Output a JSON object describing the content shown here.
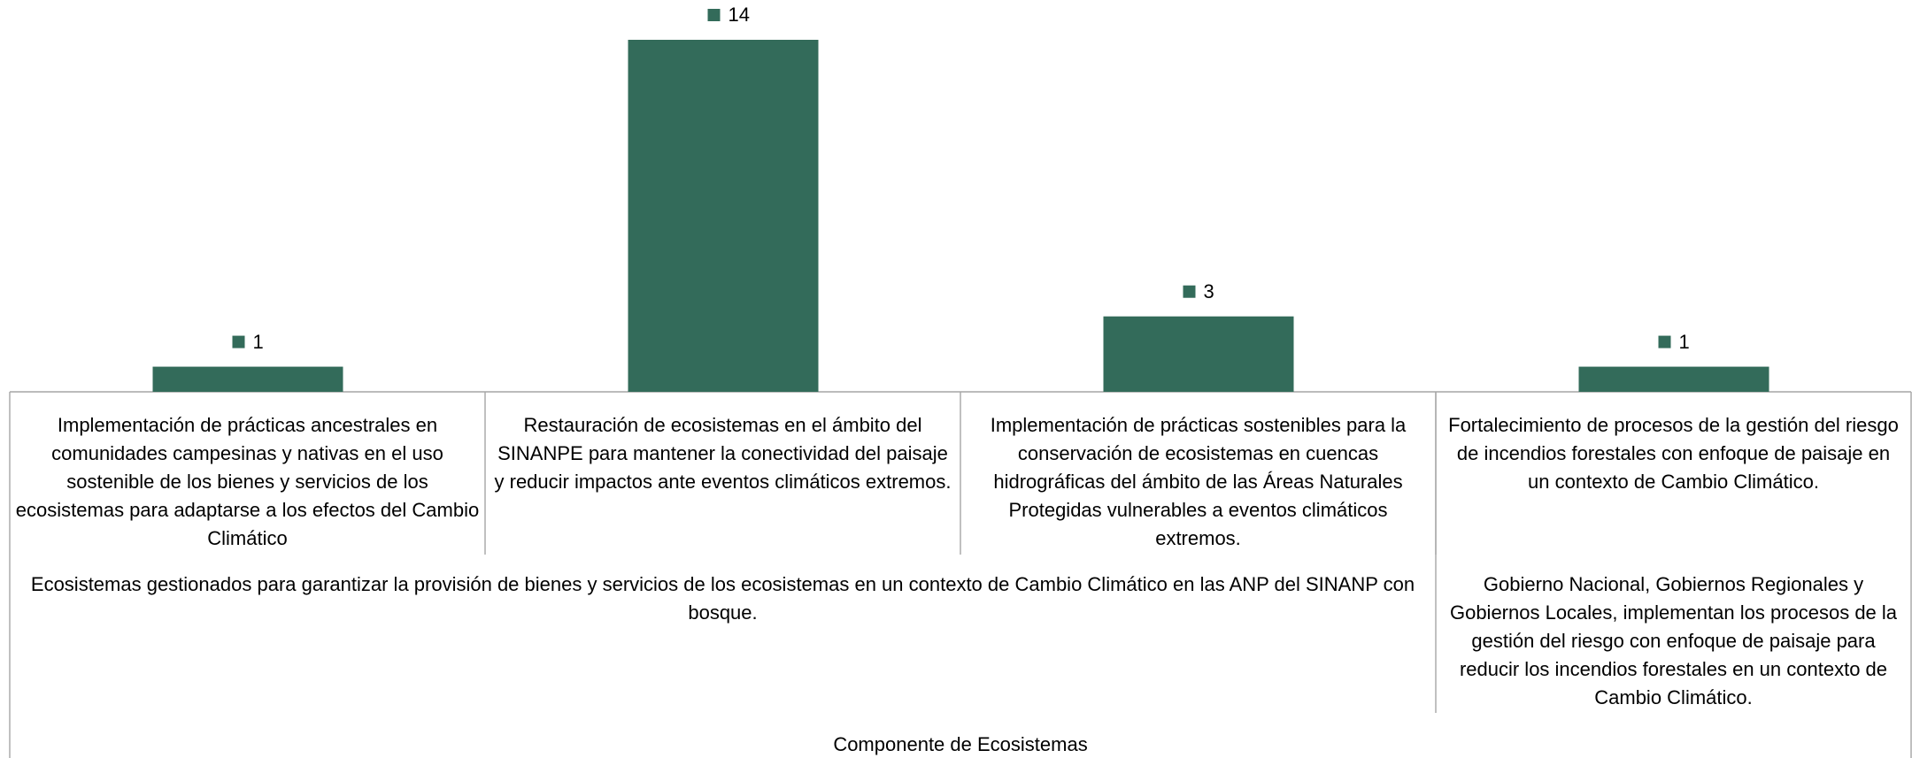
{
  "chart_data": {
    "type": "bar",
    "categories": [
      "Implementación de prácticas ancestrales en comunidades campesinas y nativas en el uso sostenible de los bienes y servicios de los ecosistemas para adaptarse a los efectos del Cambio Climático",
      "Restauración de ecosistemas en el ámbito del SINANPE para mantener la conectividad del paisaje y reducir impactos ante eventos climáticos extremos.",
      "Implementación de prácticas sostenibles para la conservación de ecosistemas en cuencas hidrográficas del ámbito de las Áreas Naturales Protegidas vulnerables a eventos climáticos extremos.",
      "Fortalecimiento de procesos de la gestión del riesgo de incendios forestales con enfoque de paisaje en\nun contexto de Cambio Climático."
    ],
    "values": [
      1,
      14,
      3,
      1
    ],
    "color": "#336b5a",
    "ylim": [
      0,
      14
    ],
    "groups": [
      {
        "label": "Ecosistemas gestionados para garantizar la provisión de bienes y servicios de los ecosistemas en un contexto de Cambio Climático en las ANP del SINANP con bosque.",
        "span": 3
      },
      {
        "label": "Gobierno Nacional, Gobiernos Regionales y Gobiernos Locales, implementan los procesos de la gestión del riesgo con enfoque de paisaje para reducir los incendios forestales en un contexto de Cambio Climático.",
        "span": 1
      }
    ],
    "axis_title": "Componente de Ecosistemas"
  }
}
